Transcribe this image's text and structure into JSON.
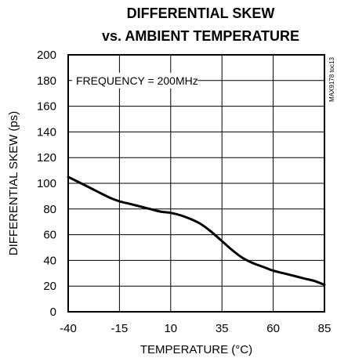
{
  "title_line1": "DIFFERENTIAL SKEW",
  "title_line2": "vs. AMBIENT TEMPERATURE",
  "part_number": "MAX9178 toc13",
  "chart_data": {
    "type": "line",
    "title": "DIFFERENTIAL SKEW vs. AMBIENT TEMPERATURE",
    "xlabel": "TEMPERATURE (°C)",
    "ylabel": "DIFFERENTIAL SKEW (ps)",
    "xlim": [
      -40,
      85
    ],
    "ylim": [
      0,
      200
    ],
    "x_ticks": [
      -40,
      -15,
      10,
      35,
      60,
      85
    ],
    "y_ticks": [
      0,
      20,
      40,
      60,
      80,
      100,
      120,
      140,
      160,
      180,
      200
    ],
    "grid": true,
    "annotation": "FREQUENCY = 200MHz",
    "line_color": "#000000",
    "series": [
      {
        "x": [
          -40,
          -30,
          -20,
          -15,
          -10,
          -5,
          0,
          5,
          10,
          15,
          20,
          25,
          30,
          35,
          40,
          45,
          50,
          55,
          60,
          65,
          70,
          75,
          80,
          85
        ],
        "values": [
          105,
          97,
          89,
          86,
          84,
          82,
          80,
          78,
          77,
          75,
          72,
          68,
          62,
          55,
          48,
          42,
          38,
          35,
          32,
          30,
          28,
          26,
          24,
          21
        ]
      }
    ]
  }
}
